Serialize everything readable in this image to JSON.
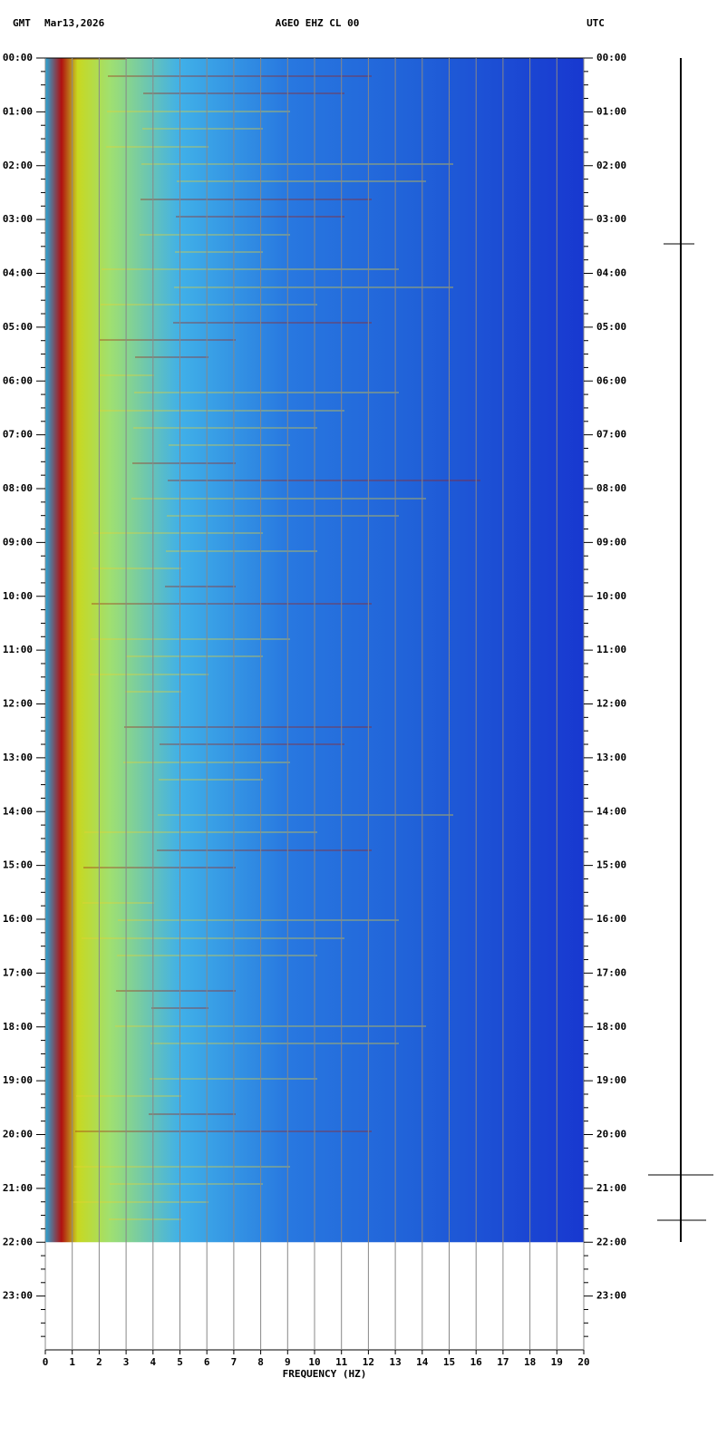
{
  "chart_data": {
    "type": "spectrogram",
    "header": {
      "left": "GMT",
      "date": "Mar13,2026",
      "station": "AGEO EHZ CL 00",
      "right": "UTC"
    },
    "xlabel": "FREQUENCY (HZ)",
    "xlim": [
      0,
      20
    ],
    "xticks": [
      0,
      1,
      2,
      3,
      4,
      5,
      6,
      7,
      8,
      9,
      10,
      11,
      12,
      13,
      14,
      15,
      16,
      17,
      18,
      19,
      20
    ],
    "ylim": [
      0,
      24
    ],
    "data_end": 22,
    "yticks": [
      {
        "value": 0,
        "label": "00:00"
      },
      {
        "value": 1,
        "label": "01:00"
      },
      {
        "value": 2,
        "label": "02:00"
      },
      {
        "value": 3,
        "label": "03:00"
      },
      {
        "value": 4,
        "label": "04:00"
      },
      {
        "value": 5,
        "label": "05:00"
      },
      {
        "value": 6,
        "label": "06:00"
      },
      {
        "value": 7,
        "label": "07:00"
      },
      {
        "value": 8,
        "label": "08:00"
      },
      {
        "value": 9,
        "label": "09:00"
      },
      {
        "value": 10,
        "label": "10:00"
      },
      {
        "value": 11,
        "label": "11:00"
      },
      {
        "value": 12,
        "label": "12:00"
      },
      {
        "value": 13,
        "label": "13:00"
      },
      {
        "value": 14,
        "label": "14:00"
      },
      {
        "value": 15,
        "label": "15:00"
      },
      {
        "value": 16,
        "label": "16:00"
      },
      {
        "value": 17,
        "label": "17:00"
      },
      {
        "value": 18,
        "label": "18:00"
      },
      {
        "value": 19,
        "label": "19:00"
      },
      {
        "value": 20,
        "label": "20:00"
      },
      {
        "value": 21,
        "label": "21:00"
      },
      {
        "value": 22,
        "label": "22:00"
      },
      {
        "value": 23,
        "label": "23:00"
      }
    ],
    "grid": true
  }
}
